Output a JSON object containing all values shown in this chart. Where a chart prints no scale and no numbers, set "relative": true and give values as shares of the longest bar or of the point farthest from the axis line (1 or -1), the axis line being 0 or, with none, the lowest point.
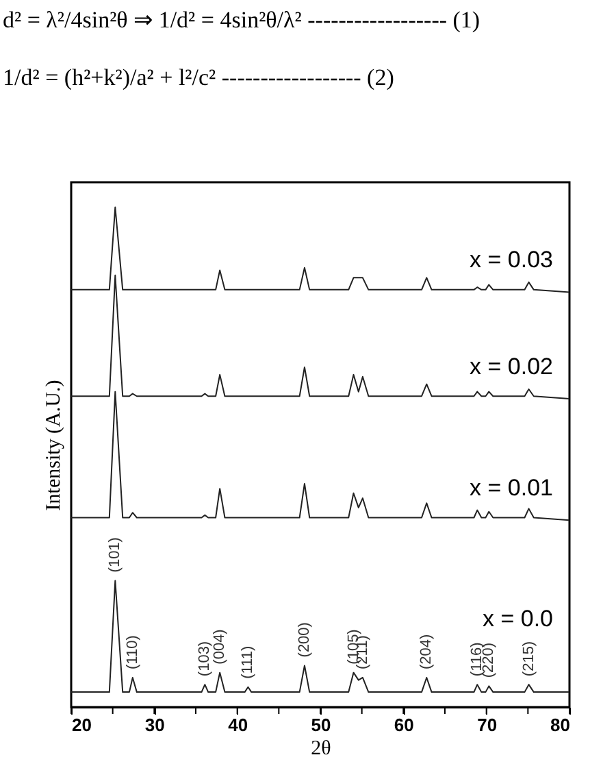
{
  "chart_data": {
    "type": "line",
    "relative": true,
    "xlabel": "2θ",
    "ylabel": "Intensity (A.U.)",
    "x": [
      20,
      24.6,
      25.3,
      26.2,
      27.0,
      27.4,
      27.9,
      35.7,
      36.1,
      36.5,
      37.4,
      37.9,
      38.5,
      40.9,
      41.3,
      41.7,
      47.5,
      48.1,
      48.7,
      53.4,
      54.0,
      54.6,
      55.1,
      55.8,
      62.2,
      62.8,
      63.4,
      68.5,
      68.9,
      69.4,
      69.9,
      70.3,
      70.8,
      74.6,
      75.1,
      75.7,
      80
    ],
    "xlim": [
      20,
      80
    ],
    "xticks": [
      20,
      {
        "value": 25,
        "label": null
      },
      30,
      {
        "value": 35,
        "label": null
      },
      40,
      {
        "value": 45,
        "label": null
      },
      50,
      {
        "value": 55,
        "label": null
      },
      60,
      {
        "value": 65,
        "label": null
      },
      70,
      {
        "value": 75,
        "label": null
      },
      80
    ],
    "line_style": "solid",
    "marker": "none",
    "grid": false,
    "legend": false,
    "series": [
      {
        "name": "x = 0.0",
        "color": "#222222",
        "values": [
          0.03,
          0.03,
          0.253,
          0.03,
          0.03,
          0.059,
          0.03,
          0.03,
          0.045,
          0.03,
          0.03,
          0.069,
          0.03,
          0.03,
          0.04,
          0.03,
          0.03,
          0.083,
          0.03,
          0.03,
          0.069,
          0.054,
          0.059,
          0.03,
          0.03,
          0.059,
          0.03,
          0.03,
          0.045,
          0.03,
          0.03,
          0.042,
          0.03,
          0.03,
          0.045,
          0.03,
          0.03
        ]
      },
      {
        "name": "x = 0.01",
        "color": "#222222",
        "values": [
          0.379,
          0.379,
          0.631,
          0.379,
          0.379,
          0.389,
          0.379,
          0.379,
          0.384,
          0.379,
          0.379,
          0.437,
          0.379,
          0.379,
          0.379,
          0.379,
          0.379,
          0.447,
          0.379,
          0.379,
          0.428,
          0.399,
          0.418,
          0.379,
          0.379,
          0.408,
          0.379,
          0.379,
          0.394,
          0.379,
          0.379,
          0.391,
          0.379,
          0.379,
          0.397,
          0.379,
          0.374
        ]
      },
      {
        "name": "x = 0.02",
        "color": "#222222",
        "values": [
          0.622,
          0.622,
          0.864,
          0.622,
          0.622,
          0.627,
          0.622,
          0.622,
          0.627,
          0.622,
          0.622,
          0.665,
          0.622,
          0.622,
          0.622,
          0.622,
          0.622,
          0.68,
          0.622,
          0.622,
          0.665,
          0.631,
          0.661,
          0.622,
          0.622,
          0.646,
          0.622,
          0.622,
          0.631,
          0.622,
          0.622,
          0.631,
          0.622,
          0.622,
          0.636,
          0.622,
          0.617
        ]
      },
      {
        "name": "x = 0.03",
        "color": "#222222",
        "values": [
          0.835,
          0.835,
          1.0,
          0.835,
          0.835,
          0.835,
          0.835,
          0.835,
          0.835,
          0.835,
          0.835,
          0.874,
          0.835,
          0.835,
          0.835,
          0.835,
          0.835,
          0.879,
          0.835,
          0.835,
          0.859,
          0.859,
          0.859,
          0.835,
          0.835,
          0.859,
          0.835,
          0.835,
          0.84,
          0.835,
          0.835,
          0.845,
          0.835,
          0.835,
          0.85,
          0.835,
          0.83
        ]
      }
    ],
    "annotations": [
      "d² = λ²/4sin²θ ⇒ 1/d² = 4sin²θ/λ² ------------------ (1)",
      "1/d² = (h²+k²)/a² + l²/c² ------------------ (2)",
      {
        "text": "(101)",
        "x": 25.3,
        "y": 0.253
      },
      {
        "text": "(110)",
        "x": 27.4,
        "y": 0.059
      },
      {
        "text": "(103)",
        "x": 36.1,
        "y": 0.045
      },
      {
        "text": "(004)",
        "x": 37.9,
        "y": 0.069
      },
      {
        "text": "(111)",
        "x": 41.3,
        "y": 0.04
      },
      {
        "text": "(200)",
        "x": 48.1,
        "y": 0.083
      },
      {
        "text": "(105)",
        "x": 54.0,
        "y": 0.069
      },
      {
        "text": "(211)",
        "x": 55.1,
        "y": 0.059
      },
      {
        "text": "(204)",
        "x": 62.8,
        "y": 0.059
      },
      {
        "text": "(116)",
        "x": 68.9,
        "y": 0.045
      },
      {
        "text": "(220)",
        "x": 70.3,
        "y": 0.042
      },
      {
        "text": "(215)",
        "x": 75.1,
        "y": 0.045
      }
    ]
  }
}
